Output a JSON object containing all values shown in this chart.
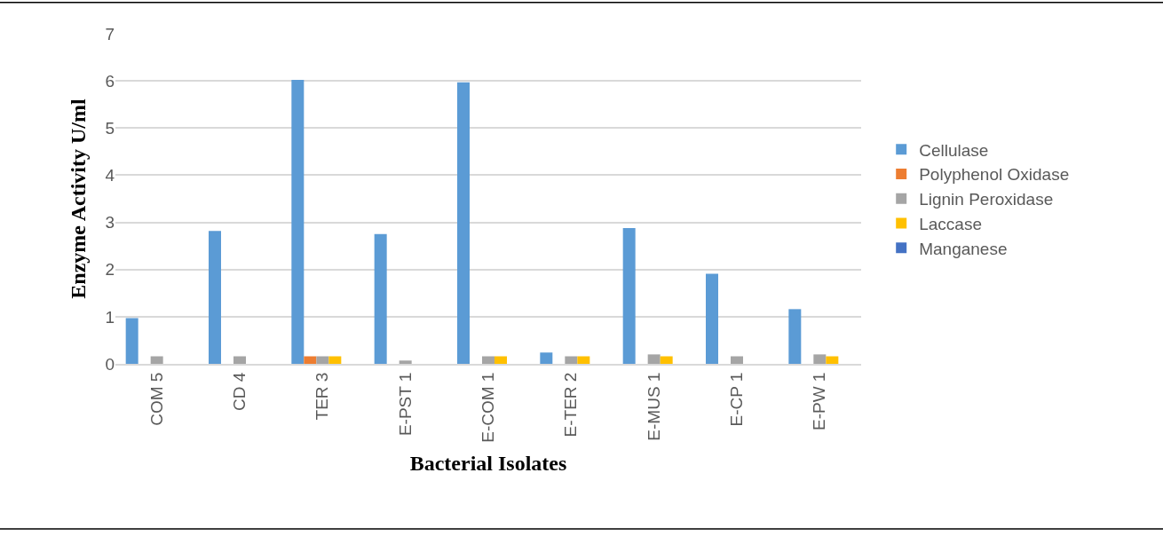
{
  "chart_data": {
    "type": "bar",
    "xlabel": "Bacterial Isolates",
    "ylabel": "Enzyme Activity U/ml",
    "categories": [
      "COM 5",
      "CD 4",
      "TER 3",
      "E-PST 1",
      "E-COM 1",
      "E-TER 2",
      "E-MUS 1",
      "E-CP 1",
      "E-PW 1"
    ],
    "series": [
      {
        "name": "Cellulase",
        "color": "#5b9bd5",
        "values": [
          0.97,
          2.82,
          6.02,
          2.75,
          5.97,
          0.24,
          2.88,
          1.91,
          1.16
        ]
      },
      {
        "name": "Polyphenol Oxidase",
        "color": "#ed7d31",
        "values": [
          0,
          0,
          0.16,
          0,
          0,
          0,
          0,
          0,
          0
        ]
      },
      {
        "name": "Lignin Peroxidase",
        "color": "#a5a5a5",
        "values": [
          0.16,
          0.16,
          0.16,
          0.07,
          0.16,
          0.16,
          0.2,
          0.16,
          0.2
        ]
      },
      {
        "name": "Laccase",
        "color": "#ffc000",
        "values": [
          0,
          0,
          0.16,
          0,
          0.16,
          0.16,
          0.16,
          0,
          0.16
        ]
      },
      {
        "name": "Manganese",
        "color": "#4472c4",
        "values": [
          0,
          0,
          0,
          0,
          0,
          0,
          0,
          0,
          0
        ]
      }
    ],
    "ylim": [
      0,
      7
    ],
    "yticks": [
      0,
      1,
      2,
      3,
      4,
      5,
      6,
      7
    ],
    "grid": "y",
    "legend": "right"
  }
}
